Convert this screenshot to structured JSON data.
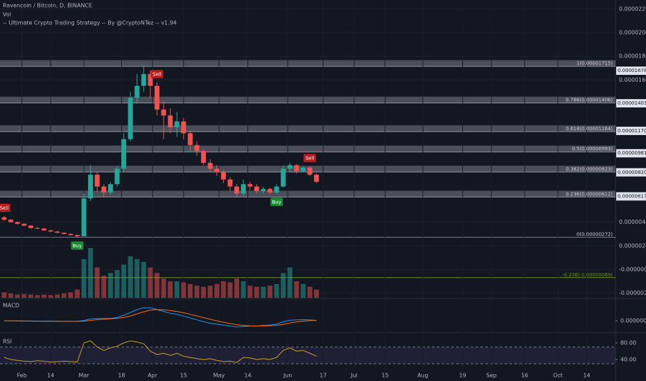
{
  "chart_data": [
    {
      "type": "candlestick",
      "title": "Ravencoin / Bitcoin, D, BINANCE",
      "volume_label": "Vol",
      "indicator": "-- Ultimate Crypto Trading Strategy -- By @CryptoNTez -- v1.94",
      "up_color": "#26a69a",
      "down_color": "#ef5350",
      "grid": true,
      "open": [
        4.4e-06,
        4.2e-06,
        4e-06,
        3.85e-06,
        3.7e-06,
        3.5e-06,
        3.45e-06,
        3.3e-06,
        3.2e-06,
        3.1e-06,
        3e-06,
        2.9e-06,
        2.8e-06,
        6e-06,
        8e-06,
        7e-06,
        6.5e-06,
        7.2e-06,
        8.5e-06,
        1.1e-05,
        1.45e-05,
        1.55e-05,
        1.65e-05,
        1.55e-05,
        1.35e-05,
        1.3e-05,
        1.2e-05,
        1.25e-05,
        1.15e-05,
        1.05e-05,
        1e-05,
        9e-06,
        8.5e-06,
        8.2e-06,
        7.6e-06,
        7e-06,
        6.4e-06,
        7.2e-06,
        7e-06,
        6.6e-06,
        6.8e-06,
        6.5e-06,
        7e-06,
        8.5e-06,
        8.8e-06,
        8.3e-06,
        8.6e-06,
        8e-06
      ],
      "high": [
        4.5e-06,
        4.25e-06,
        4.05e-06,
        3.9e-06,
        3.75e-06,
        3.6e-06,
        3.5e-06,
        3.35e-06,
        3.25e-06,
        3.15e-06,
        3.05e-06,
        2.95e-06,
        6.4e-06,
        8.8e-06,
        8.2e-06,
        7.2e-06,
        7.4e-06,
        8.7e-06,
        1.15e-05,
        1.5e-05,
        1.65e-05,
        1.715e-05,
        1.68e-05,
        1.58e-05,
        1.42e-05,
        1.36e-05,
        1.33e-05,
        1.28e-05,
        1.17e-05,
        1.08e-05,
        1.02e-05,
        9.3e-06,
        8.8e-06,
        8.4e-06,
        7.8e-06,
        7.2e-06,
        7.6e-06,
        7.4e-06,
        7.2e-06,
        7e-06,
        6.9e-06,
        7.2e-06,
        8.8e-06,
        9e-06,
        8.9e-06,
        8.7e-06,
        8.7e-06,
        8.1e-06
      ],
      "low": [
        4.1e-06,
        3.95e-06,
        3.8e-06,
        3.65e-06,
        3.45e-06,
        3.4e-06,
        3.25e-06,
        3.15e-06,
        3.05e-06,
        2.95e-06,
        2.85e-06,
        2.72e-06,
        2.75e-06,
        5.8e-06,
        6.5e-06,
        6.1e-06,
        6.3e-06,
        7e-06,
        8.3e-06,
        1.08e-05,
        1.4e-05,
        1.5e-05,
        1.45e-05,
        1.3e-05,
        1.1e-05,
        1.15e-05,
        1.12e-05,
        1.1e-05,
        1e-05,
        9.6e-06,
        8.8e-06,
        8.2e-06,
        7.9e-06,
        7.3e-06,
        6.6e-06,
        6.12e-06,
        6.2e-06,
        6.7e-06,
        6.4e-06,
        6.4e-06,
        6.3e-06,
        6.4e-06,
        6.9e-06,
        8.2e-06,
        8.1e-06,
        8.2e-06,
        7.9e-06,
        7.3e-06
      ],
      "close": [
        4.2e-06,
        4e-06,
        3.85e-06,
        3.7e-06,
        3.5e-06,
        3.45e-06,
        3.3e-06,
        3.2e-06,
        3.1e-06,
        3e-06,
        2.9e-06,
        2.8e-06,
        6e-06,
        8e-06,
        7e-06,
        6.5e-06,
        7.2e-06,
        8.5e-06,
        1.1e-05,
        1.45e-05,
        1.55e-05,
        1.65e-05,
        1.55e-05,
        1.35e-05,
        1.3e-05,
        1.2e-05,
        1.25e-05,
        1.15e-05,
        1.05e-05,
        1e-05,
        9e-06,
        8.5e-06,
        8.2e-06,
        7.6e-06,
        7e-06,
        6.4e-06,
        7.2e-06,
        7e-06,
        6.6e-06,
        6.8e-06,
        6.5e-06,
        7e-06,
        8.5e-06,
        8.8e-06,
        8.3e-06,
        8.6e-06,
        8e-06,
        7.4e-06
      ],
      "volume": [
        10,
        8,
        6,
        7,
        6,
        5,
        6,
        5,
        6,
        8,
        10,
        15,
        70,
        90,
        55,
        40,
        45,
        50,
        60,
        75,
        70,
        65,
        55,
        45,
        35,
        30,
        30,
        28,
        25,
        22,
        20,
        22,
        25,
        30,
        28,
        35,
        30,
        22,
        20,
        20,
        22,
        25,
        45,
        55,
        30,
        25,
        20,
        15
      ],
      "signals": [
        "Sell",
        null,
        null,
        null,
        null,
        null,
        null,
        null,
        null,
        null,
        null,
        "Buy",
        null,
        null,
        null,
        null,
        null,
        null,
        null,
        null,
        null,
        null,
        null,
        "Sell",
        null,
        null,
        null,
        null,
        null,
        null,
        null,
        null,
        null,
        null,
        null,
        null,
        null,
        null,
        null,
        null,
        null,
        "Buy",
        null,
        null,
        null,
        null,
        "Sell",
        null
      ],
      "xlim": [
        0,
        92
      ],
      "ylim": [
        -2.4e-06,
        2.275e-05
      ],
      "yticks": [
        {
          "value": 2.2e-05,
          "label": "0.00002200"
        },
        {
          "value": 2e-05,
          "label": "0.00002000"
        },
        {
          "value": 1.8e-05,
          "label": "0.00001800"
        },
        {
          "value": 1.6e-05,
          "label": "0.00001600"
        },
        {
          "value": 4e-06,
          "label": "0.00000400"
        },
        {
          "value": 2e-06,
          "label": "0.00000200"
        },
        {
          "value": 0,
          "label": "-0.00000000"
        },
        {
          "value": -2e-06,
          "label": "-0.00000200"
        }
      ],
      "price_markers": [
        {
          "value": 1.678e-05,
          "label": "0.00001678"
        },
        {
          "value": 1.403e-05,
          "label": "0.00001403"
        },
        {
          "value": 1.17e-05,
          "label": "0.00001170"
        },
        {
          "value": 9.81e-06,
          "label": "0.00000981"
        },
        {
          "value": 8.2e-06,
          "label": "0.00000820"
        },
        {
          "value": 6.17e-06,
          "label": "0.00000617"
        }
      ],
      "fib_levels": [
        {
          "value": 1.715e-05,
          "label": "1(0.00001715)",
          "color": "#9598a1"
        },
        {
          "value": 1.406e-05,
          "label": "0.786(0.00001406)",
          "color": "#9598a1"
        },
        {
          "value": 1.164e-05,
          "label": "0.618(0.00001164)",
          "color": "#9598a1"
        },
        {
          "value": 9.93e-06,
          "label": "0.5(0.00000993)",
          "color": "#9598a1"
        },
        {
          "value": 8.23e-06,
          "label": "0.382(0.00000823)",
          "color": "#9598a1"
        },
        {
          "value": 6.12e-06,
          "label": "0.236(0.00000612)",
          "color": "#9598a1"
        },
        {
          "value": 2.72e-06,
          "label": "0(0.00000272)",
          "color": "#787b86"
        },
        {
          "value": -6.9e-07,
          "label": "-0.236(-0.00000069)",
          "color": "#6b8e23"
        }
      ]
    },
    {
      "type": "line",
      "title": "MACD",
      "xlim": [
        0,
        92
      ],
      "ylim": [
        -5.9e-07,
        1.19e-06
      ],
      "yticks": [
        {
          "value": 0,
          "label": "0.00000000"
        }
      ],
      "series": [
        {
          "color": "#2196f3",
          "values": [
            0,
            0,
            -1e-08,
            -1e-08,
            -2e-08,
            -2e-08,
            -2e-08,
            -3e-08,
            -3e-08,
            -3e-08,
            -3e-08,
            -3e-08,
            2e-08,
            1e-07,
            1.3e-07,
            1.2e-07,
            1.3e-07,
            1.8e-07,
            3e-07,
            4.5e-07,
            6e-07,
            7e-07,
            7e-07,
            6e-07,
            5e-07,
            4e-07,
            3.5e-07,
            2.5e-07,
            1.5e-07,
            5e-08,
            -5e-08,
            -1.3e-07,
            -1.8e-07,
            -2.3e-07,
            -2.8e-07,
            -3.3e-07,
            -3e-07,
            -2.8e-07,
            -2.8e-07,
            -2.5e-07,
            -2.3e-07,
            -1.8e-07,
            -5e-08,
            3e-08,
            5e-08,
            6e-08,
            5e-08,
            2e-08
          ]
        },
        {
          "color": "#ff6d00",
          "values": [
            0,
            0,
            0,
            -1e-08,
            -1e-08,
            -1.5e-08,
            -2e-08,
            -2e-08,
            -2.5e-08,
            -3e-08,
            -3e-08,
            -3e-08,
            -2e-08,
            2e-08,
            6e-08,
            9e-08,
            1.1e-07,
            1.3e-07,
            1.8e-07,
            2.6e-07,
            3.7e-07,
            4.8e-07,
            5.7e-07,
            6e-07,
            5.9e-07,
            5.5e-07,
            5e-07,
            4.3e-07,
            3.5e-07,
            2.6e-07,
            1.7e-07,
            8e-08,
            0,
            -8e-08,
            -1.5e-07,
            -2.1e-07,
            -2.5e-07,
            -2.7e-07,
            -2.8e-07,
            -2.7e-07,
            -2.6e-07,
            -2.4e-07,
            -1.9e-07,
            -1.2e-07,
            -6e-08,
            -2e-08,
            1e-08,
            2e-08
          ]
        }
      ]
    },
    {
      "type": "line",
      "title": "RSI",
      "xlim": [
        0,
        92
      ],
      "ylim": [
        16.7,
        103.3
      ],
      "band": [
        30,
        70
      ],
      "band_color": "#7e57c2",
      "yticks": [
        {
          "value": 80,
          "label": "80.00"
        },
        {
          "value": 40,
          "label": "40.00"
        }
      ],
      "series": [
        {
          "color": "#c9a227",
          "values": [
            45,
            40,
            38,
            36,
            35,
            37,
            36,
            34,
            35,
            36,
            35,
            34,
            80,
            85,
            70,
            62,
            68,
            72,
            80,
            85,
            82,
            78,
            60,
            52,
            55,
            50,
            55,
            48,
            45,
            42,
            40,
            42,
            38,
            35,
            36,
            33,
            45,
            44,
            40,
            42,
            40,
            45,
            62,
            68,
            60,
            62,
            55,
            48
          ]
        }
      ],
      "xticks": [
        {
          "value": 2.67,
          "label": "Feb"
        },
        {
          "value": 7,
          "label": "14"
        },
        {
          "value": 12,
          "label": "Mar"
        },
        {
          "value": 17.67,
          "label": "18"
        },
        {
          "value": 22.33,
          "label": "Apr"
        },
        {
          "value": 27,
          "label": "15"
        },
        {
          "value": 32.33,
          "label": "May"
        },
        {
          "value": 36.67,
          "label": "14"
        },
        {
          "value": 42.67,
          "label": "Jun"
        },
        {
          "value": 48,
          "label": "17"
        },
        {
          "value": 52.67,
          "label": "Jul"
        },
        {
          "value": 57.33,
          "label": "15"
        },
        {
          "value": 63,
          "label": "Aug"
        },
        {
          "value": 69,
          "label": "19"
        },
        {
          "value": 73.33,
          "label": "Sep"
        },
        {
          "value": 78.33,
          "label": "16"
        },
        {
          "value": 83.33,
          "label": "Oct"
        },
        {
          "value": 87.67,
          "label": "14"
        }
      ]
    }
  ]
}
